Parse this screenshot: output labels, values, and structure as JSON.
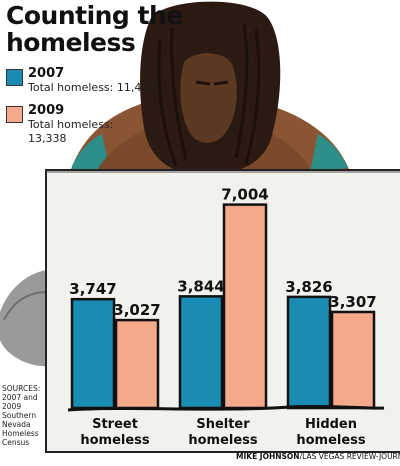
{
  "sources": {
    "label": "SOURCES:",
    "lines": [
      "2007 and",
      "2009",
      "Southern",
      "Nevada",
      "Homeless",
      "Census"
    ]
  },
  "credit": {
    "author": "MIKE JOHNSON",
    "outlet": "/LAS VEGAS REVIEW-JOURNAL"
  },
  "colors": {
    "year_2007": "#1a8cb4",
    "year_2009": "#f5a98b",
    "panel": "#f3f1ed",
    "figure_skin": "#8a5532",
    "figure_hair": "#2a1a12"
  },
  "chart_data": {
    "type": "bar",
    "title": "Counting the homeless",
    "categories": [
      [
        "Street",
        "homeless"
      ],
      [
        "Shelter",
        "homeless"
      ],
      [
        "Hidden",
        "homeless"
      ]
    ],
    "series": [
      {
        "name": "2007",
        "total_label": "Total homeless: 11,417",
        "values": [
          3747,
          3844,
          3826
        ],
        "labels": [
          "3,747",
          "3,844",
          "3,826"
        ]
      },
      {
        "name": "2009",
        "total_label": "Total homeless: 13,338",
        "values": [
          3027,
          7004,
          3307
        ],
        "labels": [
          "3,027",
          "7,004",
          "3,307"
        ]
      }
    ],
    "ylim": [
      0,
      7300
    ],
    "legend": "top-left",
    "grid": false,
    "xlabel": "",
    "ylabel": ""
  }
}
